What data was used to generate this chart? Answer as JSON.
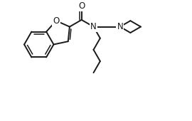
{
  "bg_color": "#ffffff",
  "line_color": "#1a1a1a",
  "line_width": 1.4,
  "figsize": [
    2.7,
    1.7
  ],
  "dpi": 100,
  "xlim": [
    0,
    10
  ],
  "ylim": [
    0,
    6.3
  ]
}
